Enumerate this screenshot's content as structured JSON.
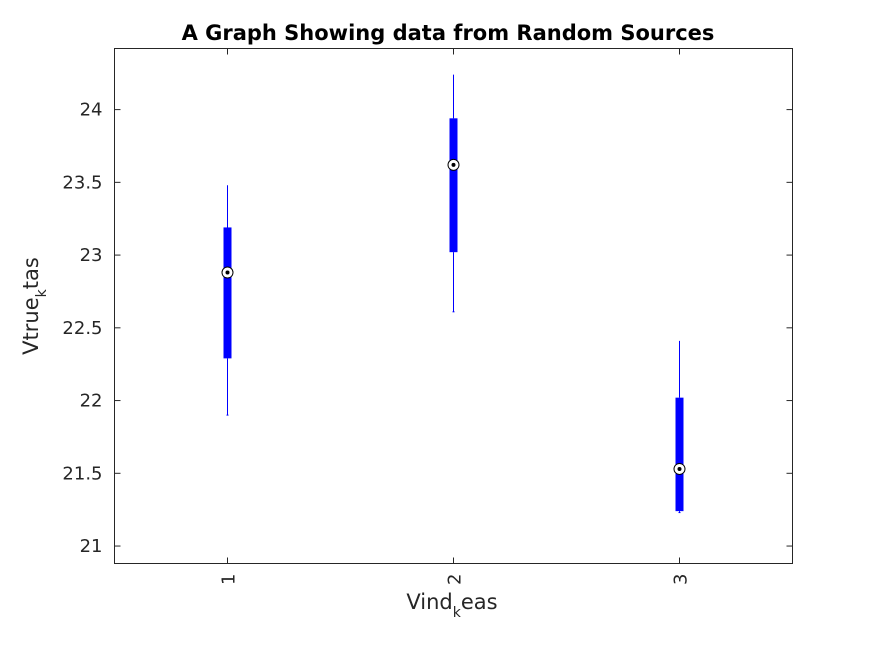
{
  "chart_data": {
    "type": "boxplot",
    "title": "A Graph Showing data from Random Sources",
    "xlabel": {
      "main": "Vind",
      "sub": "k",
      "rest": "eas"
    },
    "ylabel": {
      "main": "Vtrue",
      "sub": "k",
      "rest": "tas"
    },
    "categories": [
      "1",
      "2",
      "3"
    ],
    "ylim": [
      20.88,
      24.42
    ],
    "yticks": [
      21,
      21.5,
      22,
      22.5,
      23,
      23.5,
      24
    ],
    "ytick_labels": [
      "21",
      "21.5",
      "22",
      "22.5",
      "23",
      "23.5",
      "24"
    ],
    "grid": false,
    "box_color": "#0000ff",
    "boxes": [
      {
        "category": "1",
        "min": 21.9,
        "q1": 22.29,
        "median": 22.88,
        "q3": 23.19,
        "max": 23.48
      },
      {
        "category": "2",
        "min": 22.61,
        "q1": 23.02,
        "median": 23.62,
        "q3": 23.94,
        "max": 24.24
      },
      {
        "category": "3",
        "min": 21.23,
        "q1": 21.24,
        "median": 21.53,
        "q3": 22.02,
        "max": 22.41
      }
    ]
  }
}
